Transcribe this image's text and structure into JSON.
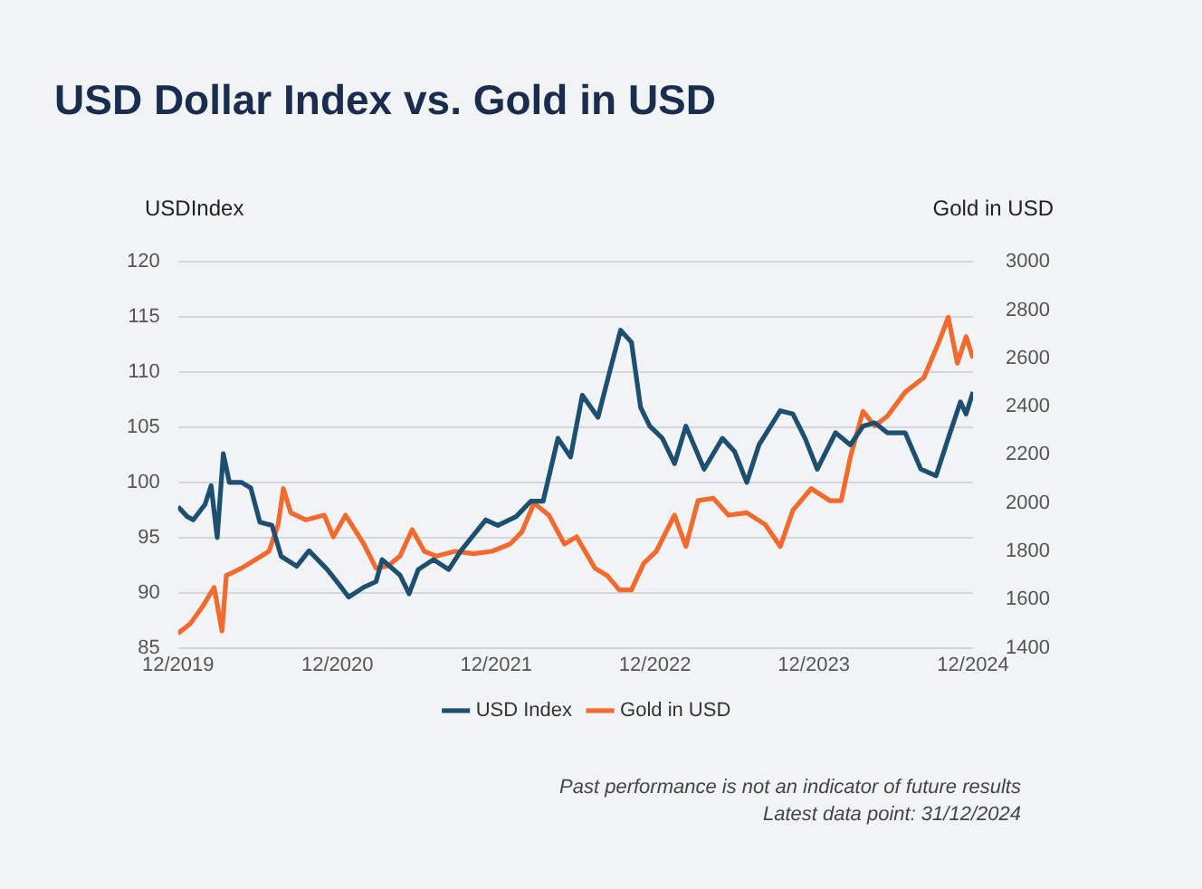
{
  "chart_data": {
    "type": "line",
    "title": "USD Dollar Index vs. Gold in USD",
    "ylabel": "USDIndex",
    "y2label": "Gold in USD",
    "annotations": [
      "Past performance is not an indicator of future results",
      "Latest data point: 31/12/2024"
    ],
    "xlim": [
      "2019-12-31",
      "2024-12-31"
    ],
    "xticks": [
      {
        "value": "2019-12-31",
        "label": "12/2019"
      },
      {
        "value": "2020-12-31",
        "label": "12/2020"
      },
      {
        "value": "2021-12-31",
        "label": "12/2021"
      },
      {
        "value": "2022-12-31",
        "label": "12/2022"
      },
      {
        "value": "2023-12-31",
        "label": "12/2023"
      },
      {
        "value": "2024-12-31",
        "label": "12/2024"
      }
    ],
    "ylim": [
      85,
      120
    ],
    "yticks": [
      85,
      90,
      95,
      100,
      105,
      110,
      115,
      120
    ],
    "y2lim": [
      1400,
      3000
    ],
    "y2ticks": [
      1400,
      1600,
      1800,
      2000,
      2200,
      2400,
      2600,
      2800,
      3000
    ],
    "grid": "y",
    "legend": "bottom",
    "series": [
      {
        "name": "USD Index",
        "color": "#1c4f70",
        "x": [
          "2019-12-31",
          "2020-01-21",
          "2020-02-04",
          "2020-03-02",
          "2020-03-16",
          "2020-03-30",
          "2020-04-13",
          "2020-04-27",
          "2020-05-25",
          "2020-06-15",
          "2020-07-06",
          "2020-08-03",
          "2020-08-24",
          "2020-09-29",
          "2020-10-27",
          "2020-12-08",
          "2021-01-05",
          "2021-01-26",
          "2021-03-02",
          "2021-03-30",
          "2021-04-13",
          "2021-05-24",
          "2021-06-14",
          "2021-07-05",
          "2021-08-09",
          "2021-09-13",
          "2021-10-11",
          "2021-12-07",
          "2022-01-04",
          "2022-02-15",
          "2022-03-21",
          "2022-04-18",
          "2022-05-22",
          "2022-06-20",
          "2022-07-17",
          "2022-08-22",
          "2022-09-19",
          "2022-10-13",
          "2022-11-07",
          "2022-11-28",
          "2022-12-19",
          "2023-01-17",
          "2023-02-14",
          "2023-03-12",
          "2023-04-23",
          "2023-06-04",
          "2023-07-02",
          "2023-07-30",
          "2023-08-27",
          "2023-10-15",
          "2023-11-13",
          "2023-12-11",
          "2024-01-08",
          "2024-02-19",
          "2024-03-24",
          "2024-04-22",
          "2024-05-19",
          "2024-06-17",
          "2024-07-28",
          "2024-09-02",
          "2024-10-07",
          "2024-11-04",
          "2024-12-02",
          "2024-12-15",
          "2024-12-31"
        ],
        "values": [
          97.8,
          96.9,
          96.6,
          98.0,
          99.7,
          95.0,
          102.6,
          100.0,
          100.0,
          99.5,
          96.4,
          96.1,
          93.3,
          92.4,
          93.8,
          92.1,
          90.7,
          89.6,
          90.5,
          91.0,
          93.0,
          91.6,
          89.9,
          92.1,
          93.0,
          92.1,
          93.8,
          96.6,
          96.1,
          96.9,
          98.3,
          98.3,
          104.0,
          102.3,
          107.9,
          105.9,
          110.2,
          113.8,
          112.7,
          106.8,
          105.1,
          104.0,
          101.7,
          105.1,
          101.2,
          104.0,
          102.8,
          100.0,
          103.4,
          106.5,
          106.2,
          104.0,
          101.2,
          104.5,
          103.4,
          105.1,
          105.4,
          104.5,
          104.5,
          101.2,
          100.6,
          104.0,
          107.3,
          106.2,
          108.2
        ]
      },
      {
        "name": "Gold in USD",
        "color": "#f26a2e",
        "axis": "y2",
        "x": [
          "2019-12-31",
          "2020-01-28",
          "2020-02-25",
          "2020-03-23",
          "2020-04-10",
          "2020-04-20",
          "2020-05-25",
          "2020-06-30",
          "2020-07-27",
          "2020-08-17",
          "2020-08-29",
          "2020-09-15",
          "2020-10-20",
          "2020-12-01",
          "2020-12-22",
          "2021-01-19",
          "2021-03-02",
          "2021-03-30",
          "2021-04-27",
          "2021-05-24",
          "2021-06-21",
          "2021-07-19",
          "2021-08-16",
          "2021-09-28",
          "2021-11-09",
          "2021-12-21",
          "2022-02-01",
          "2022-02-28",
          "2022-03-28",
          "2022-05-01",
          "2022-06-06",
          "2022-07-04",
          "2022-08-15",
          "2022-09-12",
          "2022-10-10",
          "2022-11-07",
          "2022-12-05",
          "2023-01-03",
          "2023-02-14",
          "2023-03-12",
          "2023-04-09",
          "2023-05-14",
          "2023-06-18",
          "2023-07-30",
          "2023-09-11",
          "2023-10-15",
          "2023-11-13",
          "2023-12-25",
          "2024-02-06",
          "2024-03-03",
          "2024-03-24",
          "2024-04-22",
          "2024-05-19",
          "2024-06-17",
          "2024-07-28",
          "2024-09-09",
          "2024-10-14",
          "2024-11-04",
          "2024-11-25",
          "2024-12-15",
          "2024-12-31"
        ],
        "values": [
          1460,
          1500,
          1570,
          1650,
          1470,
          1700,
          1730,
          1770,
          1800,
          1910,
          2060,
          1960,
          1930,
          1950,
          1860,
          1950,
          1830,
          1730,
          1740,
          1780,
          1890,
          1800,
          1780,
          1800,
          1790,
          1800,
          1830,
          1880,
          2000,
          1950,
          1830,
          1860,
          1730,
          1700,
          1640,
          1640,
          1750,
          1800,
          1950,
          1820,
          2010,
          2020,
          1950,
          1960,
          1910,
          1820,
          1970,
          2060,
          2010,
          2010,
          2190,
          2380,
          2320,
          2360,
          2460,
          2520,
          2670,
          2770,
          2580,
          2690,
          2600
        ]
      }
    ]
  }
}
